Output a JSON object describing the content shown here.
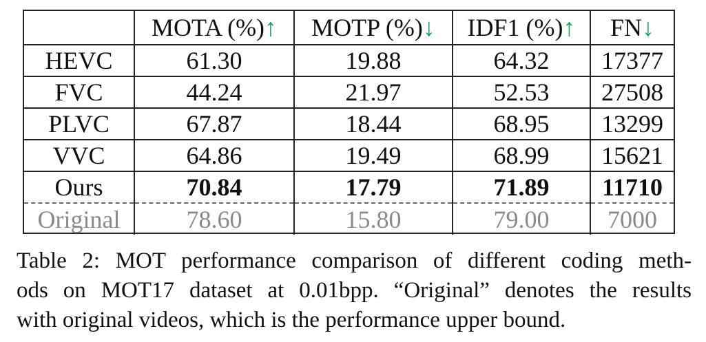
{
  "table": {
    "headers": [
      {
        "label": "",
        "arrow": ""
      },
      {
        "label": "MOTA (%)",
        "arrow": "↑"
      },
      {
        "label": "MOTP (%)",
        "arrow": "↓"
      },
      {
        "label": "IDF1 (%)",
        "arrow": "↑"
      },
      {
        "label": "FN",
        "arrow": "↓"
      }
    ],
    "rows": [
      {
        "method": "HEVC",
        "values": [
          "61.30",
          "19.88",
          "64.32",
          "17377"
        ]
      },
      {
        "method": "FVC",
        "values": [
          "44.24",
          "21.97",
          "52.53",
          "27508"
        ]
      },
      {
        "method": "PLVC",
        "values": [
          "67.87",
          "18.44",
          "68.95",
          "13299"
        ]
      },
      {
        "method": "VVC",
        "values": [
          "64.86",
          "19.49",
          "68.99",
          "15621"
        ]
      },
      {
        "method": "Ours",
        "values": [
          "70.84",
          "17.79",
          "71.89",
          "11710"
        ]
      },
      {
        "method": "Original",
        "values": [
          "78.60",
          "15.80",
          "79.00",
          "7000"
        ]
      }
    ]
  },
  "caption": {
    "lines": [
      "Table 2: MOT performance comparison of different coding meth-",
      "ods on MOT17 dataset at 0.01bpp. “Original” denotes the results",
      "with original videos, which is the performance upper bound."
    ]
  },
  "colors": {
    "arrow": "#1aa05a",
    "original_row": "#8a8a8a"
  }
}
